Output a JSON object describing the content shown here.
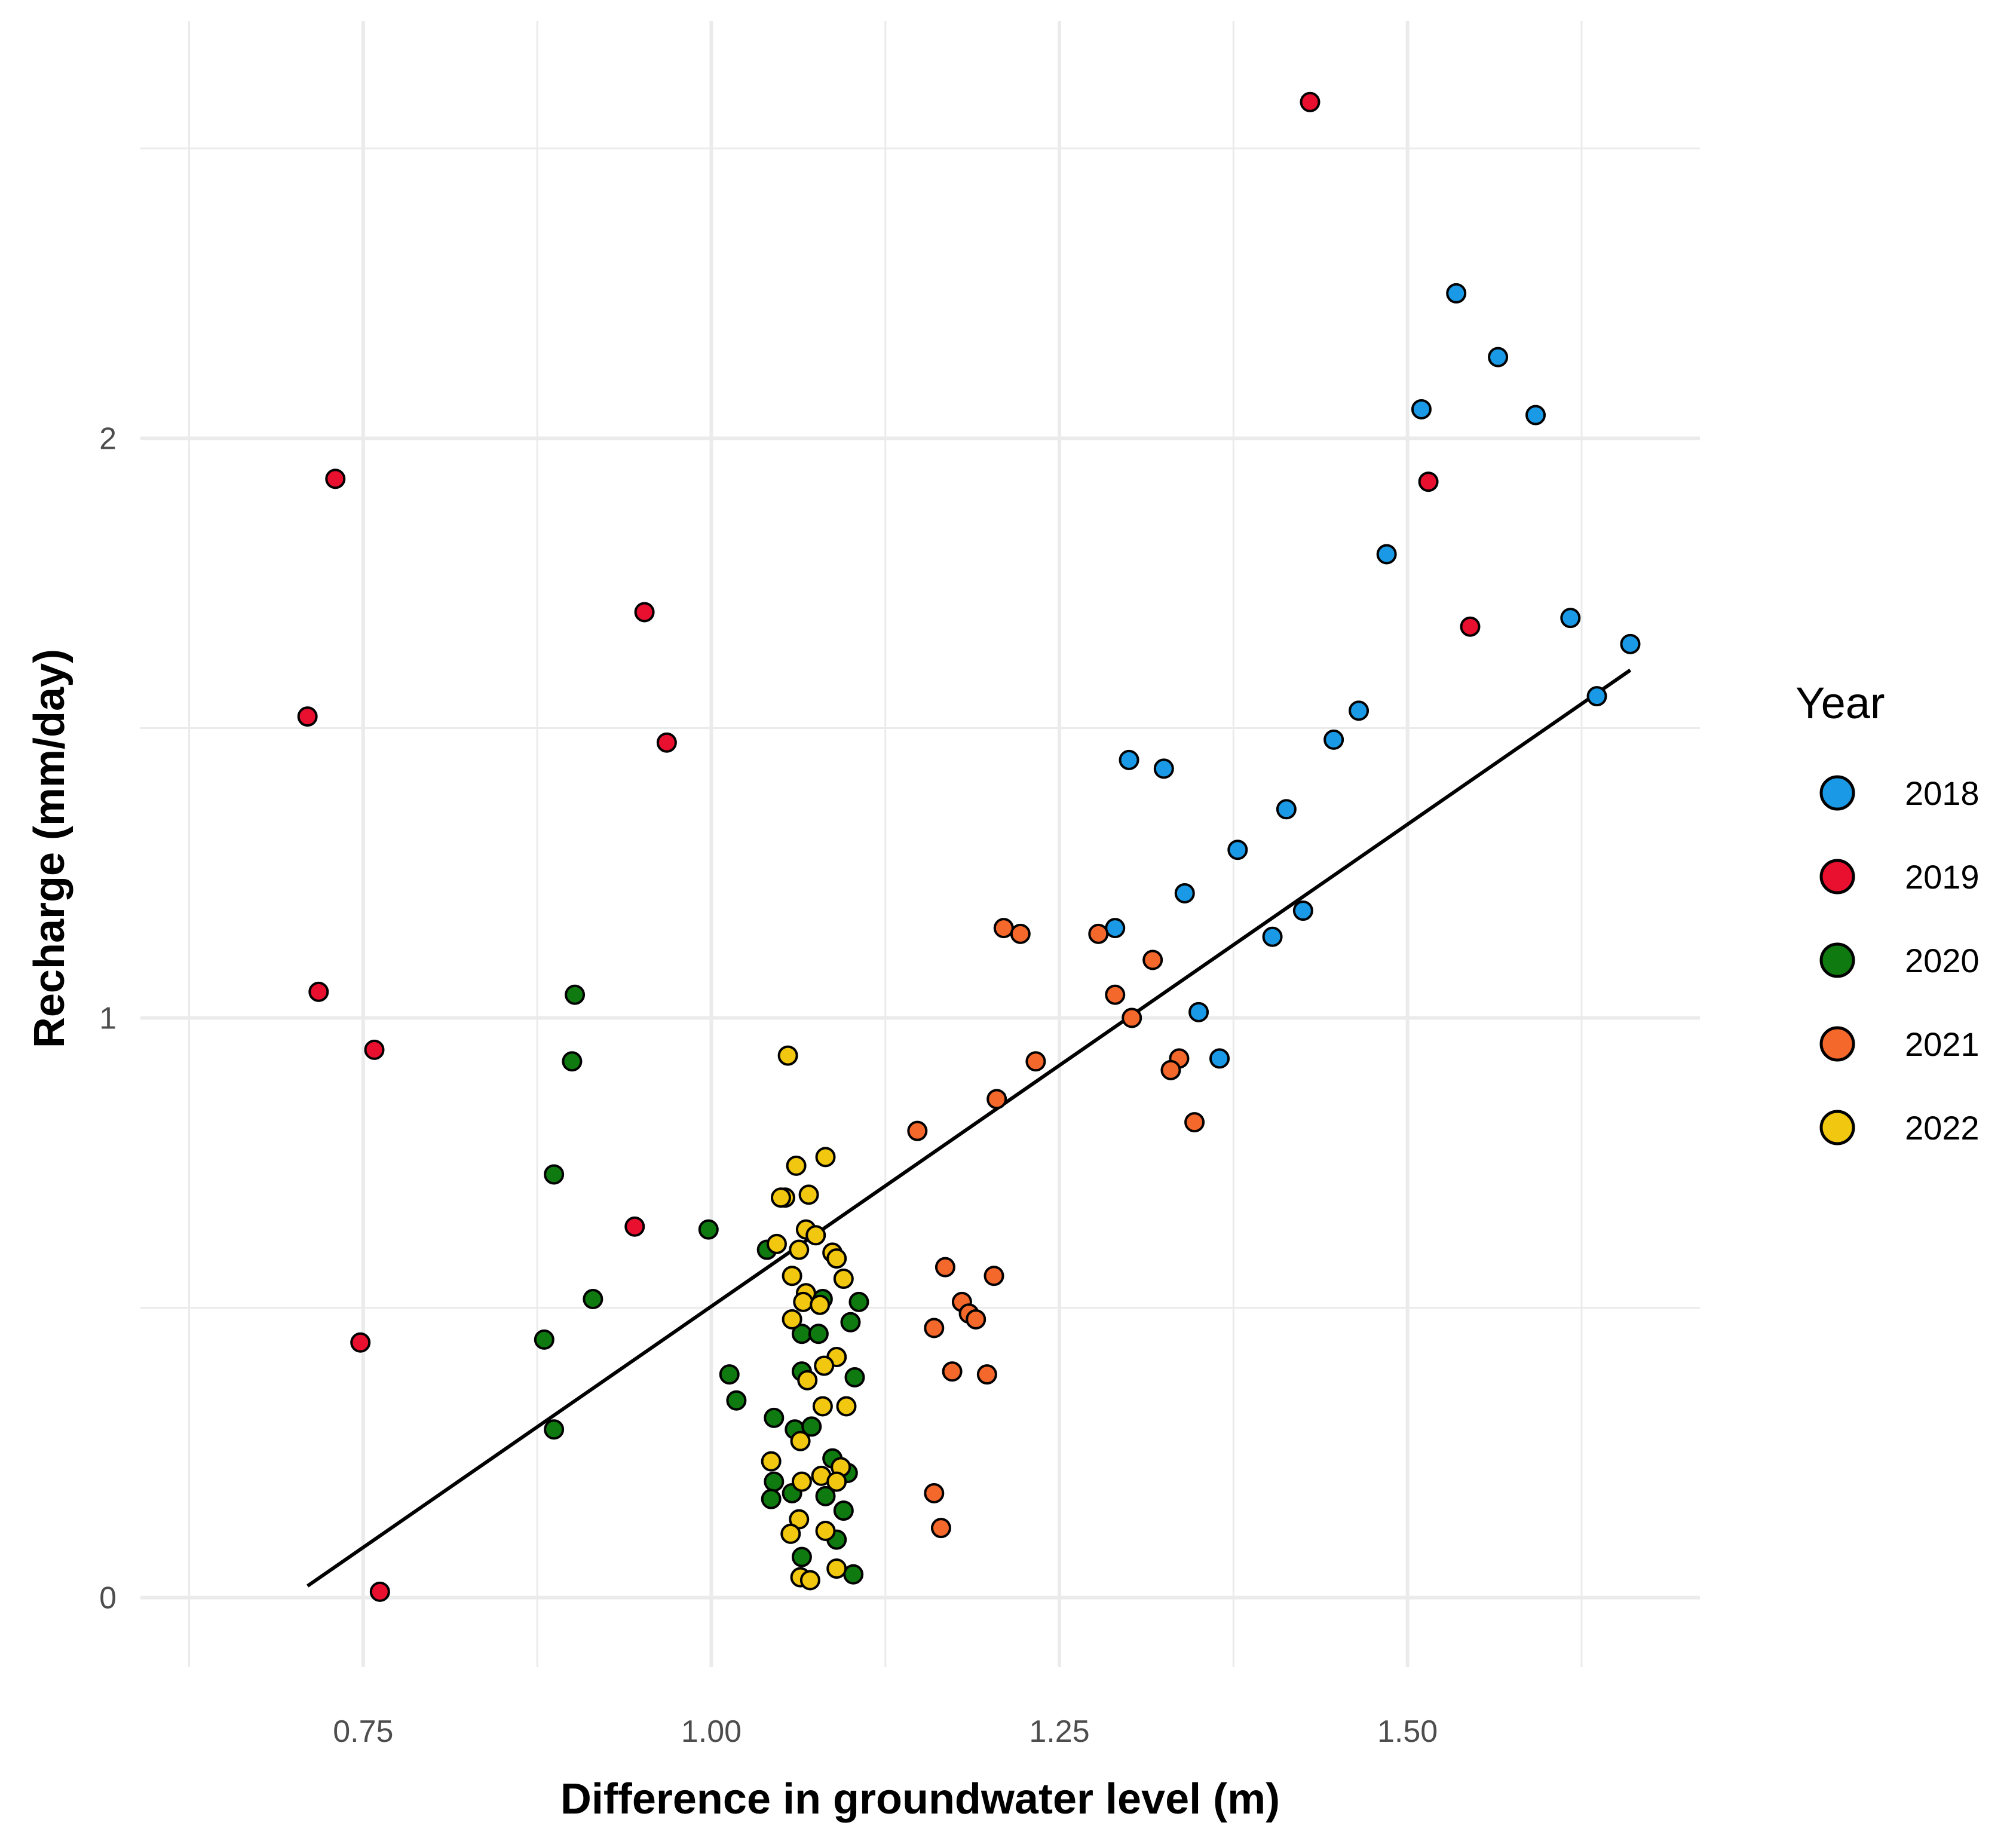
{
  "chart_data": {
    "type": "scatter",
    "title": "",
    "xlabel": "Difference in groundwater level (m)",
    "ylabel": "Recharge (mm/day)",
    "xlim": [
      0.59,
      1.71
    ],
    "ylim": [
      -0.12,
      2.72
    ],
    "x_ticks": [
      0.75,
      1.0,
      1.25,
      1.5
    ],
    "x_tick_labels": [
      "0.75",
      "1.00",
      "1.25",
      "1.50"
    ],
    "y_ticks": [
      0,
      1,
      2
    ],
    "y_tick_labels": [
      "0",
      "1",
      "2"
    ],
    "grid": true,
    "legend": {
      "title": "Year",
      "position": "right"
    },
    "trend_line": {
      "x": [
        0.71,
        1.66
      ],
      "y": [
        0.02,
        1.6
      ]
    },
    "series": [
      {
        "name": "2018",
        "color": "#1a9ae6",
        "points": [
          [
            1.535,
            2.25
          ],
          [
            1.565,
            2.14
          ],
          [
            1.51,
            2.05
          ],
          [
            1.592,
            2.04
          ],
          [
            1.485,
            1.8
          ],
          [
            1.617,
            1.69
          ],
          [
            1.66,
            1.645
          ],
          [
            1.465,
            1.53
          ],
          [
            1.636,
            1.555
          ],
          [
            1.447,
            1.48
          ],
          [
            1.3,
            1.445
          ],
          [
            1.325,
            1.43
          ],
          [
            1.413,
            1.36
          ],
          [
            1.378,
            1.29
          ],
          [
            1.34,
            1.215
          ],
          [
            1.425,
            1.185
          ],
          [
            1.403,
            1.14
          ],
          [
            1.29,
            1.155
          ],
          [
            1.35,
            1.01
          ],
          [
            1.365,
            0.93
          ]
        ]
      },
      {
        "name": "2019",
        "color": "#e8102e",
        "points": [
          [
            1.43,
            2.58
          ],
          [
            0.73,
            1.93
          ],
          [
            1.515,
            1.925
          ],
          [
            0.952,
            1.7
          ],
          [
            1.545,
            1.675
          ],
          [
            0.71,
            1.52
          ],
          [
            0.968,
            1.475
          ],
          [
            0.718,
            1.045
          ],
          [
            0.758,
            0.945
          ],
          [
            0.945,
            0.64
          ],
          [
            0.748,
            0.44
          ],
          [
            0.762,
            0.01
          ]
        ]
      },
      {
        "name": "2020",
        "color": "#0f7a0f",
        "points": [
          [
            0.902,
            1.04
          ],
          [
            0.9,
            0.925
          ],
          [
            0.887,
            0.73
          ],
          [
            0.998,
            0.635
          ],
          [
            1.04,
            0.6
          ],
          [
            0.915,
            0.515
          ],
          [
            1.08,
            0.515
          ],
          [
            1.106,
            0.51
          ],
          [
            0.88,
            0.445
          ],
          [
            1.1,
            0.475
          ],
          [
            1.065,
            0.455
          ],
          [
            1.077,
            0.455
          ],
          [
            1.013,
            0.385
          ],
          [
            1.065,
            0.39
          ],
          [
            1.103,
            0.38
          ],
          [
            1.018,
            0.34
          ],
          [
            1.045,
            0.31
          ],
          [
            0.887,
            0.29
          ],
          [
            1.06,
            0.29
          ],
          [
            1.072,
            0.295
          ],
          [
            1.087,
            0.24
          ],
          [
            1.098,
            0.215
          ],
          [
            1.045,
            0.2
          ],
          [
            1.058,
            0.18
          ],
          [
            1.082,
            0.175
          ],
          [
            1.043,
            0.17
          ],
          [
            1.095,
            0.15
          ],
          [
            1.09,
            0.1
          ],
          [
            1.065,
            0.07
          ],
          [
            1.102,
            0.04
          ]
        ]
      },
      {
        "name": "2021",
        "color": "#f5682b",
        "points": [
          [
            1.21,
            1.155
          ],
          [
            1.222,
            1.145
          ],
          [
            1.278,
            1.145
          ],
          [
            1.317,
            1.1
          ],
          [
            1.29,
            1.04
          ],
          [
            1.302,
            1.0
          ],
          [
            1.233,
            0.925
          ],
          [
            1.336,
            0.93
          ],
          [
            1.33,
            0.91
          ],
          [
            1.205,
            0.86
          ],
          [
            1.347,
            0.82
          ],
          [
            1.148,
            0.805
          ],
          [
            1.168,
            0.57
          ],
          [
            1.203,
            0.555
          ],
          [
            1.18,
            0.51
          ],
          [
            1.185,
            0.49
          ],
          [
            1.19,
            0.48
          ],
          [
            1.16,
            0.465
          ],
          [
            1.173,
            0.39
          ],
          [
            1.198,
            0.385
          ],
          [
            1.16,
            0.18
          ],
          [
            1.165,
            0.12
          ]
        ]
      },
      {
        "name": "2022",
        "color": "#f2c70f",
        "points": [
          [
            1.055,
            0.935
          ],
          [
            1.082,
            0.76
          ],
          [
            1.061,
            0.745
          ],
          [
            1.07,
            0.695
          ],
          [
            1.053,
            0.69
          ],
          [
            1.05,
            0.69
          ],
          [
            1.068,
            0.635
          ],
          [
            1.075,
            0.625
          ],
          [
            1.047,
            0.61
          ],
          [
            1.063,
            0.6
          ],
          [
            1.087,
            0.595
          ],
          [
            1.09,
            0.585
          ],
          [
            1.058,
            0.555
          ],
          [
            1.095,
            0.55
          ],
          [
            1.068,
            0.525
          ],
          [
            1.066,
            0.51
          ],
          [
            1.078,
            0.505
          ],
          [
            1.058,
            0.48
          ],
          [
            1.09,
            0.415
          ],
          [
            1.081,
            0.4
          ],
          [
            1.069,
            0.375
          ],
          [
            1.08,
            0.33
          ],
          [
            1.097,
            0.33
          ],
          [
            1.064,
            0.27
          ],
          [
            1.043,
            0.235
          ],
          [
            1.093,
            0.225
          ],
          [
            1.079,
            0.21
          ],
          [
            1.09,
            0.2
          ],
          [
            1.065,
            0.2
          ],
          [
            1.063,
            0.135
          ],
          [
            1.057,
            0.11
          ],
          [
            1.082,
            0.115
          ],
          [
            1.09,
            0.05
          ],
          [
            1.064,
            0.035
          ],
          [
            1.071,
            0.03
          ]
        ]
      }
    ]
  }
}
